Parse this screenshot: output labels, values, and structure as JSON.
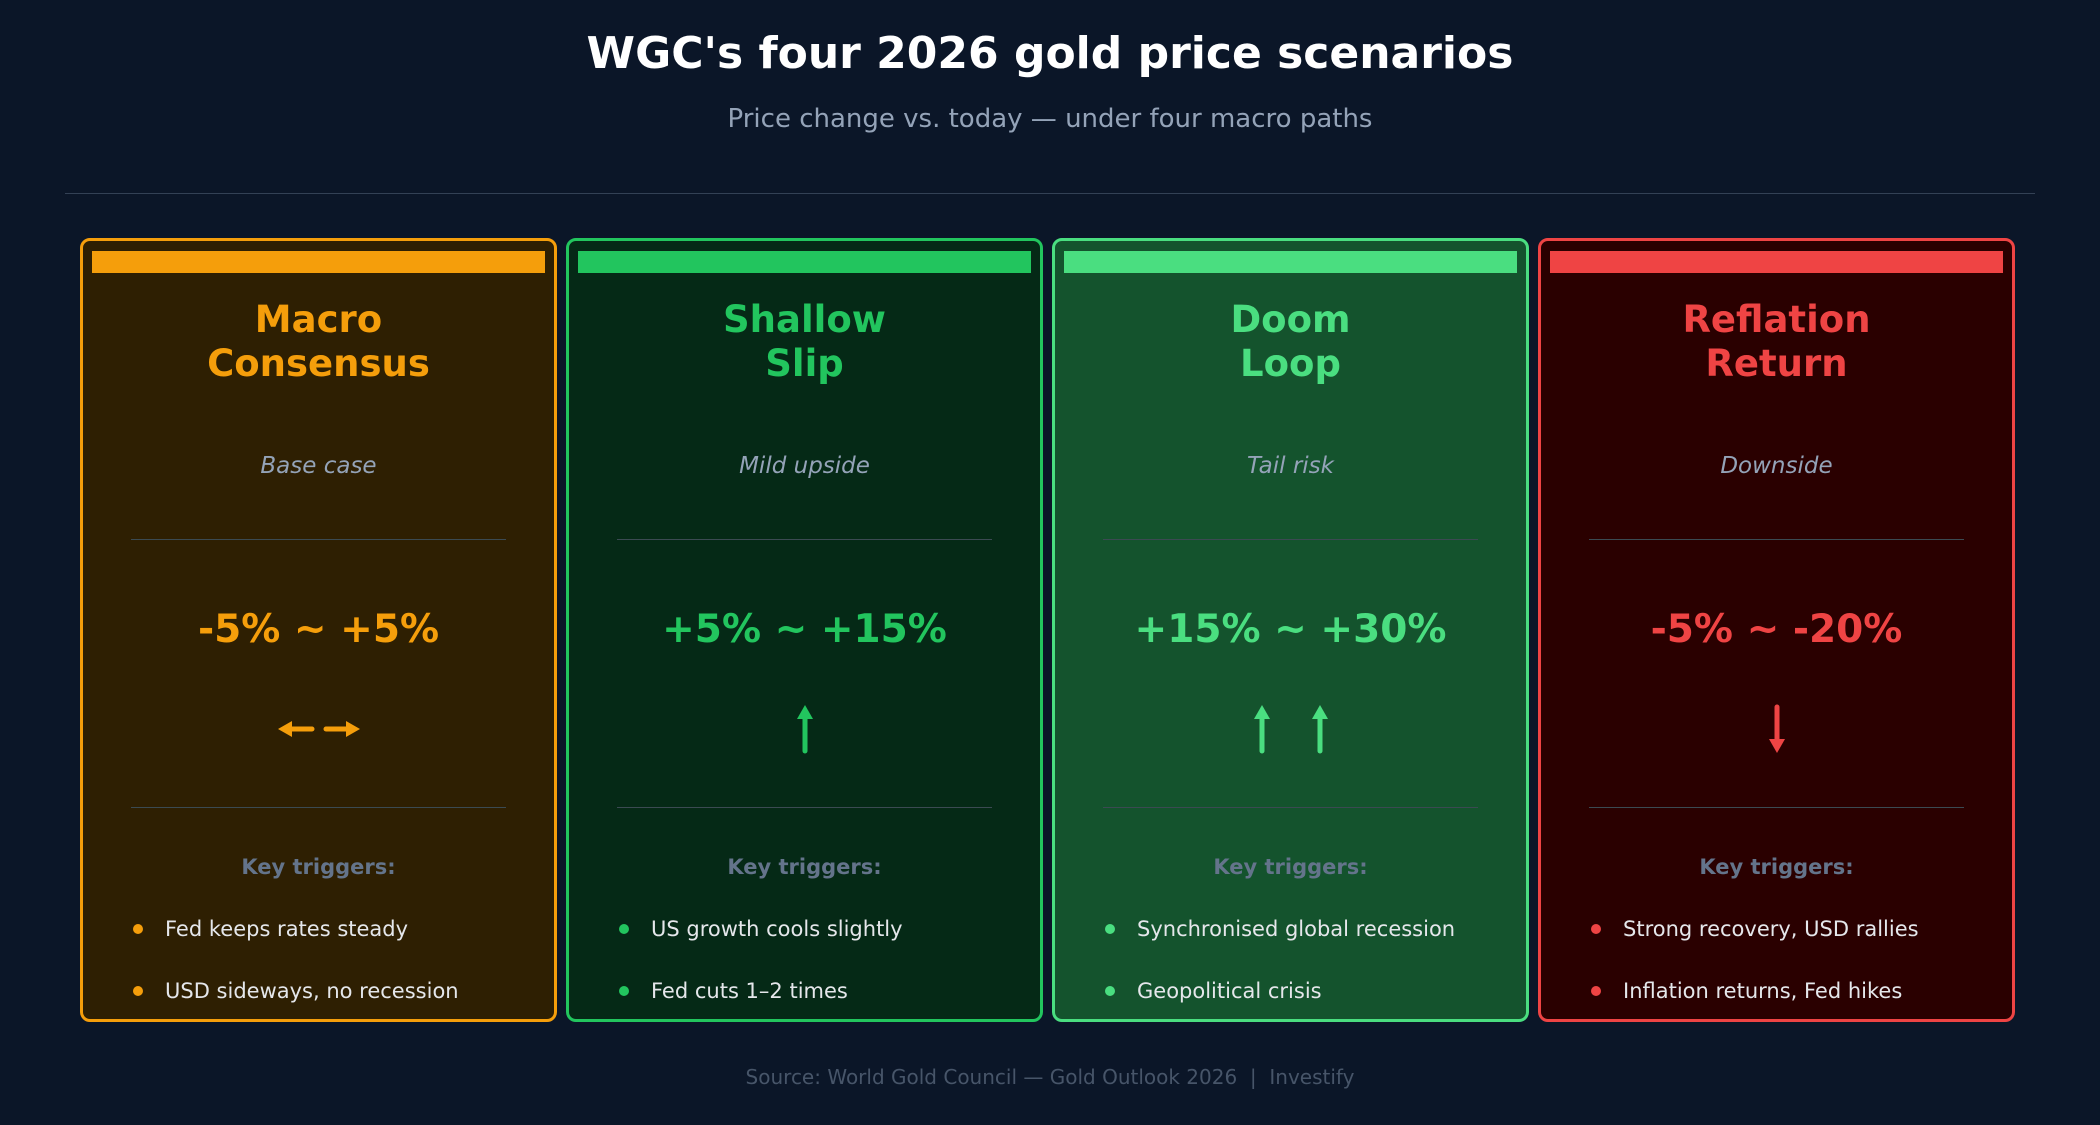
{
  "header": {
    "title": "WGC's four 2026 gold price scenarios",
    "subtitle": "Price change vs. today — under four macro paths"
  },
  "key_triggers_label": "Key triggers:",
  "cards": [
    {
      "title_line1": "Macro",
      "title_line2": "Consensus",
      "subtitle": "Base case",
      "range": "-5% ~ +5%",
      "icon": "left-right-arrows-icon",
      "color": "#f59e0b",
      "bg": "#2e1f02",
      "triggers": [
        "Fed keeps rates steady",
        "USD sideways, no recession"
      ]
    },
    {
      "title_line1": "Shallow",
      "title_line2": "Slip",
      "subtitle": "Mild upside",
      "range": "+5% ~ +15%",
      "icon": "up-arrow-icon",
      "color": "#22c55e",
      "bg": "#052916",
      "triggers": [
        "US growth cools slightly",
        "Fed cuts 1–2 times"
      ]
    },
    {
      "title_line1": "Doom",
      "title_line2": "Loop",
      "subtitle": "Tail risk",
      "range": "+15% ~ +30%",
      "icon": "double-up-arrow-icon",
      "color": "#4ade80",
      "bg": "#14532d",
      "triggers": [
        "Synchronised global recession",
        "Geopolitical crisis"
      ]
    },
    {
      "title_line1": "Reflation",
      "title_line2": "Return",
      "subtitle": "Downside",
      "range": "-5% ~ -20%",
      "icon": "down-arrow-icon",
      "color": "#ef4444",
      "bg": "#2a0000",
      "triggers": [
        "Strong recovery, USD rallies",
        "Inflation returns, Fed hikes"
      ]
    }
  ],
  "footer": "Source: World Gold Council — Gold Outlook 2026  |  Investify"
}
